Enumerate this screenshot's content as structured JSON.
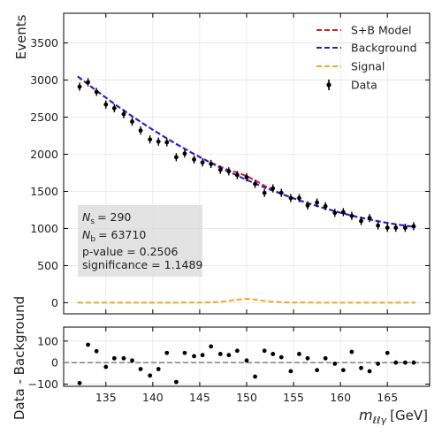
{
  "chart_data": [
    {
      "type": "scatter",
      "panel": "main",
      "ylabel": "Events",
      "xlim": [
        130.5,
        169.5
      ],
      "ylim": [
        -150,
        3900
      ],
      "yticks": [
        0,
        500,
        1000,
        1500,
        2000,
        2500,
        3000,
        3500
      ],
      "grid": true,
      "legend_position": "top-right",
      "legend": [
        {
          "label": "S+B Model",
          "color": "#e31a1c",
          "style": "dashed"
        },
        {
          "label": "Background",
          "color": "#1f1fd6",
          "style": "dashed"
        },
        {
          "label": "Signal",
          "color": "#f5a623",
          "style": "dashed"
        },
        {
          "label": "Data",
          "color": "#000000",
          "style": "errorbar"
        }
      ],
      "stats": {
        "ns_symbol": "N",
        "ns_sub": "s",
        "ns_value": "= 290",
        "nb_symbol": "N",
        "nb_sub": "b",
        "nb_value": "= 63710",
        "pvalue": "p-value = 0.2506",
        "significance": "significance = 1.1489"
      },
      "series": [
        {
          "name": "Data",
          "x": [
            132.2,
            133.1,
            134.0,
            135.0,
            135.9,
            136.9,
            137.8,
            138.7,
            139.7,
            140.6,
            141.5,
            142.5,
            143.4,
            144.4,
            145.3,
            146.2,
            147.2,
            148.1,
            149.0,
            150.0,
            150.9,
            151.9,
            152.8,
            153.7,
            154.7,
            155.6,
            156.5,
            157.5,
            158.4,
            159.4,
            160.3,
            161.2,
            162.2,
            163.1,
            164.0,
            165.0,
            165.9,
            166.9,
            167.8
          ],
          "y": [
            2910,
            2970,
            2840,
            2670,
            2620,
            2540,
            2440,
            2320,
            2200,
            2170,
            2160,
            1960,
            2010,
            1930,
            1890,
            1870,
            1790,
            1770,
            1720,
            1690,
            1600,
            1480,
            1540,
            1480,
            1410,
            1410,
            1310,
            1350,
            1300,
            1210,
            1220,
            1170,
            1100,
            1140,
            1040,
            1010,
            1010,
            1010,
            1030
          ],
          "yerr": 55
        },
        {
          "name": "Background",
          "x": [
            132.0,
            134.0,
            136.0,
            138.0,
            140.0,
            142.0,
            144.0,
            146.0,
            148.0,
            150.0,
            152.0,
            154.0,
            156.0,
            158.0,
            160.0,
            162.0,
            164.0,
            166.0,
            168.0
          ],
          "y": [
            3050,
            2855,
            2670,
            2495,
            2330,
            2175,
            2030,
            1895,
            1770,
            1655,
            1548,
            1450,
            1362,
            1283,
            1212,
            1150,
            1098,
            1054,
            1020
          ]
        },
        {
          "name": "Signal",
          "x": [
            132.0,
            140.0,
            144.0,
            146.0,
            147.0,
            148.0,
            149.0,
            150.0,
            151.0,
            152.0,
            153.0,
            154.0,
            156.0,
            160.0,
            168.0
          ],
          "y": [
            0,
            0,
            1,
            4,
            10,
            22,
            40,
            52,
            40,
            22,
            10,
            4,
            1,
            0,
            0
          ]
        }
      ]
    },
    {
      "type": "scatter",
      "panel": "residual",
      "xlabel": "m",
      "xlabel_sub": "ℓℓγ",
      "xlabel_unit": "[GeV]",
      "ylabel": "Data - Background",
      "xlim": [
        130.5,
        169.5
      ],
      "ylim": [
        -110,
        165
      ],
      "xticks": [
        135,
        140,
        145,
        150,
        155,
        160,
        165
      ],
      "yticks": [
        -100,
        0,
        100
      ],
      "zero_line": true,
      "series": [
        {
          "name": "Data - Background",
          "x": [
            132.2,
            133.1,
            134.0,
            135.0,
            135.9,
            136.9,
            137.8,
            138.7,
            139.7,
            140.6,
            141.5,
            142.5,
            143.4,
            144.4,
            145.3,
            146.2,
            147.2,
            148.1,
            149.0,
            150.0,
            150.9,
            151.9,
            152.8,
            153.7,
            154.7,
            155.6,
            156.5,
            157.5,
            158.4,
            159.4,
            160.3,
            161.2,
            162.2,
            163.1,
            164.0,
            165.0,
            165.9,
            166.9,
            167.8
          ],
          "y": [
            -95,
            83,
            53,
            -20,
            20,
            20,
            10,
            -30,
            -60,
            -30,
            45,
            -90,
            45,
            30,
            35,
            75,
            40,
            35,
            55,
            10,
            -65,
            55,
            40,
            25,
            -40,
            40,
            20,
            -35,
            20,
            -5,
            -35,
            50,
            -25,
            -40,
            -5,
            45,
            0,
            0,
            0
          ]
        }
      ]
    }
  ]
}
